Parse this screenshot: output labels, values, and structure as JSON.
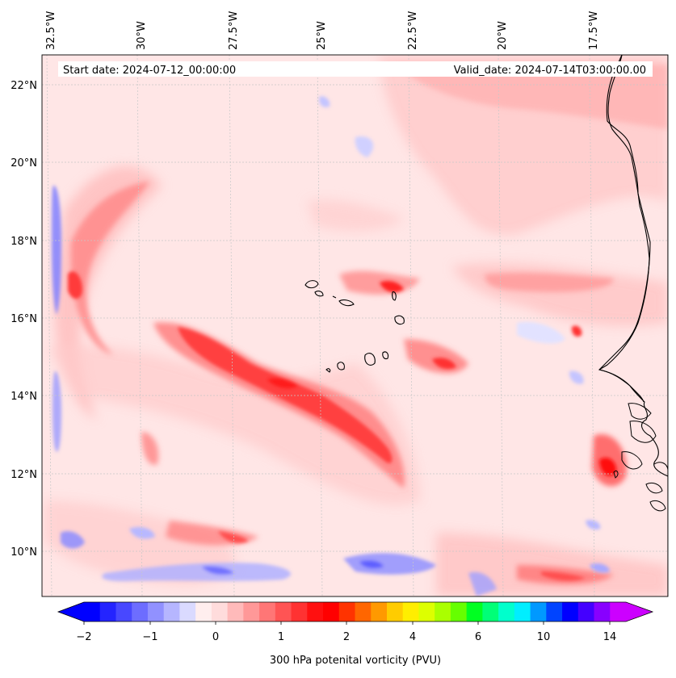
{
  "map": {
    "start_date_label": "Start date: 2024-07-12_00:00:00",
    "valid_date_label": "Valid_date: 2024-07-14T03:00:00.00",
    "lon_labels": [
      "32.5°W",
      "30°W",
      "27.5°W",
      "25°W",
      "22.5°W",
      "20°W",
      "17.5°W"
    ],
    "lat_labels": [
      "22°N",
      "20°N",
      "18°N",
      "16°N",
      "14°N",
      "12°N",
      "10°N"
    ],
    "colors": {
      "background_anomaly": "#ffe6e6",
      "coastline": "#000000",
      "gridline": "#c8c8c8"
    }
  },
  "colorbar": {
    "title": "300 hPa potenital vorticity (PVU)",
    "tick_labels": [
      "−2",
      "−1",
      "0",
      "1",
      "2",
      "4",
      "6",
      "10",
      "14"
    ],
    "colors": [
      "#0000ff",
      "#2424ff",
      "#4848ff",
      "#6d6dff",
      "#9191ff",
      "#b6b6ff",
      "#dadaff",
      "#ffeeee",
      "#ffdcdc",
      "#ffbaba",
      "#ff9898",
      "#ff7676",
      "#ff5454",
      "#ff3232",
      "#ff1010",
      "#ff0000",
      "#ff3300",
      "#ff6600",
      "#ff9900",
      "#ffcc00",
      "#ffee00",
      "#ddff00",
      "#aaff00",
      "#66ff00",
      "#00ff22",
      "#00ff77",
      "#00ffcc",
      "#00eeff",
      "#0099ff",
      "#0044ff",
      "#0000ff",
      "#4400ff",
      "#8800ff",
      "#cc00ff"
    ]
  }
}
